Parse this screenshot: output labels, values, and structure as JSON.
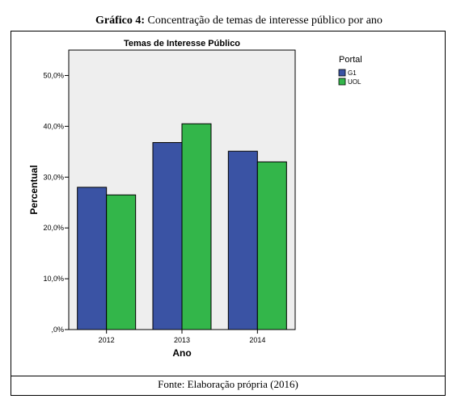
{
  "caption": {
    "label": "Gráfico 4:",
    "text": " Concentração de temas de interesse público por ano"
  },
  "source": "Fonte: Elaboração própria (2016)",
  "colors": {
    "plot_background": "#eeeeee",
    "G1": "#3a53a4",
    "UOL": "#33b64a"
  },
  "chart_data": {
    "type": "bar",
    "title": "Temas de Interesse Público",
    "xlabel": "Ano",
    "ylabel": "Percentual",
    "categories": [
      "2012",
      "2013",
      "2014"
    ],
    "series": [
      {
        "name": "G1",
        "values": [
          28.0,
          36.8,
          35.1
        ]
      },
      {
        "name": "UOL",
        "values": [
          26.5,
          40.5,
          33.0
        ]
      }
    ],
    "ylim": [
      0,
      55
    ],
    "yticks": [
      0,
      10,
      20,
      30,
      40,
      50
    ],
    "ytick_labels": [
      ",0%",
      "10,0%",
      "20,0%",
      "30,0%",
      "40,0%",
      "50,0%"
    ],
    "legend_title": "Portal",
    "legend_position": "right",
    "grid": false
  }
}
